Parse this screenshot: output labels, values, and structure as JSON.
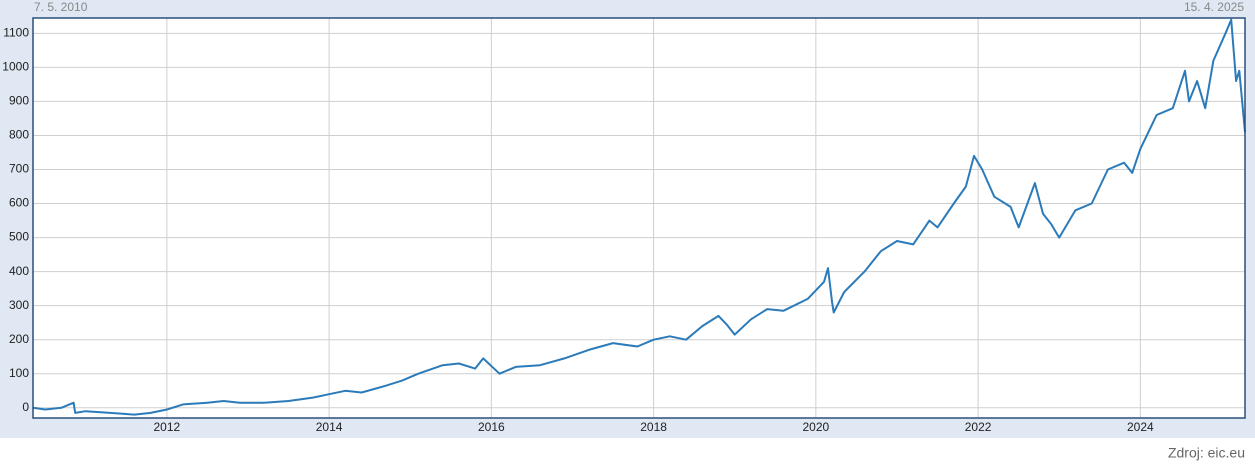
{
  "chart_data": {
    "type": "line",
    "start_label": "7. 5. 2010",
    "end_label": "15. 4. 2025",
    "source": "Zdroj: eic.eu",
    "xlim": [
      2010.35,
      2025.29
    ],
    "xticks": [
      2012,
      2014,
      2016,
      2018,
      2020,
      2022,
      2024
    ],
    "ylim": [
      -30,
      1145
    ],
    "yticks": [
      0,
      100,
      200,
      300,
      400,
      500,
      600,
      700,
      800,
      900,
      1000,
      1100
    ],
    "grid": true,
    "color": "#2b7bba",
    "x": [
      2010.35,
      2010.5,
      2010.7,
      2010.85,
      2010.87,
      2011.0,
      2011.3,
      2011.6,
      2011.8,
      2012.0,
      2012.2,
      2012.5,
      2012.7,
      2012.9,
      2013.2,
      2013.5,
      2013.8,
      2014.0,
      2014.2,
      2014.4,
      2014.7,
      2014.9,
      2015.1,
      2015.4,
      2015.6,
      2015.8,
      2015.9,
      2016.1,
      2016.3,
      2016.6,
      2016.9,
      2017.2,
      2017.5,
      2017.8,
      2018.0,
      2018.2,
      2018.4,
      2018.6,
      2018.8,
      2018.9,
      2019.0,
      2019.2,
      2019.4,
      2019.6,
      2019.9,
      2020.1,
      2020.15,
      2020.2,
      2020.22,
      2020.35,
      2020.6,
      2020.8,
      2021.0,
      2021.2,
      2021.4,
      2021.5,
      2021.7,
      2021.85,
      2021.95,
      2022.05,
      2022.2,
      2022.4,
      2022.5,
      2022.7,
      2022.8,
      2022.9,
      2023.0,
      2023.2,
      2023.4,
      2023.6,
      2023.8,
      2023.9,
      2024.0,
      2024.2,
      2024.4,
      2024.55,
      2024.6,
      2024.7,
      2024.8,
      2024.9,
      2025.05,
      2025.12,
      2025.18,
      2025.22,
      2025.29
    ],
    "values": [
      0,
      -5,
      0,
      15,
      -15,
      -10,
      -15,
      -20,
      -15,
      -5,
      10,
      15,
      20,
      15,
      15,
      20,
      30,
      40,
      50,
      45,
      65,
      80,
      100,
      125,
      130,
      115,
      145,
      100,
      120,
      125,
      145,
      170,
      190,
      180,
      200,
      210,
      200,
      240,
      270,
      245,
      215,
      260,
      290,
      285,
      320,
      370,
      410,
      310,
      280,
      340,
      400,
      460,
      490,
      480,
      550,
      530,
      600,
      650,
      740,
      700,
      620,
      590,
      530,
      660,
      570,
      540,
      500,
      580,
      600,
      700,
      720,
      690,
      760,
      860,
      880,
      990,
      900,
      960,
      880,
      1020,
      1100,
      1140,
      960,
      990,
      810
    ]
  }
}
